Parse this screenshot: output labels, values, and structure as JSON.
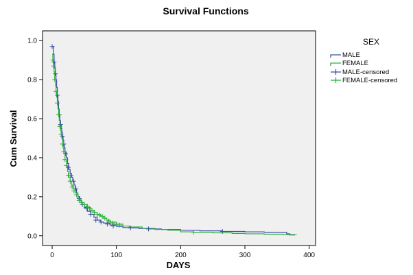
{
  "chart_data": {
    "type": "line",
    "subtype": "step",
    "title": "Survival Functions",
    "xlabel": "DAYS",
    "ylabel": "Cum Survival",
    "xlim": [
      -15,
      410
    ],
    "ylim": [
      -0.05,
      1.05
    ],
    "x_ticks": [
      0,
      100,
      200,
      300,
      400
    ],
    "y_ticks": [
      0.0,
      0.2,
      0.4,
      0.6,
      0.8,
      1.0
    ],
    "y_tick_labels": [
      "0.0",
      "0.2",
      "0.4",
      "0.6",
      "0.8",
      "1.0"
    ],
    "grid": false,
    "plot_background": "#f0f0f0",
    "legend": {
      "title": "SEX",
      "placement": "right",
      "entries": [
        "MALE",
        "FEMALE",
        "MALE-censored",
        "FEMALE-censored"
      ]
    },
    "series": [
      {
        "name": "MALE",
        "color": "#3c4ea6",
        "x": [
          0,
          2,
          3,
          4,
          5,
          6,
          7,
          8,
          9,
          10,
          11,
          12,
          13,
          14,
          15,
          16,
          17,
          18,
          19,
          20,
          22,
          24,
          26,
          28,
          30,
          32,
          34,
          36,
          38,
          40,
          43,
          46,
          50,
          55,
          60,
          65,
          70,
          75,
          80,
          90,
          100,
          110,
          120,
          135,
          150,
          170,
          200,
          230,
          265,
          300,
          330,
          365,
          370,
          378
        ],
        "y": [
          0.97,
          0.93,
          0.89,
          0.86,
          0.83,
          0.8,
          0.76,
          0.72,
          0.69,
          0.65,
          0.62,
          0.59,
          0.57,
          0.55,
          0.53,
          0.51,
          0.49,
          0.47,
          0.45,
          0.43,
          0.4,
          0.37,
          0.34,
          0.32,
          0.3,
          0.28,
          0.26,
          0.24,
          0.22,
          0.2,
          0.18,
          0.16,
          0.145,
          0.125,
          0.11,
          0.095,
          0.08,
          0.07,
          0.065,
          0.055,
          0.048,
          0.042,
          0.04,
          0.037,
          0.035,
          0.032,
          0.028,
          0.025,
          0.022,
          0.02,
          0.018,
          0.01,
          0.004,
          0.004
        ]
      },
      {
        "name": "FEMALE",
        "color": "#2ab03c",
        "x": [
          0,
          1,
          2,
          3,
          4,
          5,
          6,
          7,
          8,
          9,
          10,
          11,
          12,
          13,
          14,
          15,
          16,
          17,
          18,
          20,
          22,
          24,
          26,
          28,
          30,
          33,
          36,
          40,
          45,
          50,
          55,
          60,
          65,
          70,
          75,
          80,
          85,
          90,
          100,
          110,
          120,
          140,
          160,
          180,
          200,
          220,
          250,
          280,
          300,
          330,
          360,
          380
        ],
        "y": [
          0.93,
          0.9,
          0.87,
          0.84,
          0.8,
          0.77,
          0.74,
          0.71,
          0.68,
          0.65,
          0.62,
          0.59,
          0.56,
          0.54,
          0.52,
          0.5,
          0.47,
          0.45,
          0.43,
          0.39,
          0.36,
          0.33,
          0.3,
          0.28,
          0.26,
          0.24,
          0.22,
          0.19,
          0.17,
          0.16,
          0.145,
          0.13,
          0.12,
          0.11,
          0.1,
          0.09,
          0.08,
          0.07,
          0.06,
          0.05,
          0.045,
          0.038,
          0.032,
          0.028,
          0.02,
          0.018,
          0.015,
          0.012,
          0.01,
          0.008,
          0.006,
          0.004
        ]
      }
    ],
    "censored": [
      {
        "name": "MALE-censored",
        "color": "#3c4ea6",
        "x": [
          0,
          3,
          5,
          8,
          11,
          13,
          16,
          18,
          21,
          25,
          29,
          33,
          37,
          42,
          47,
          53,
          60,
          68,
          76,
          86,
          95,
          122,
          150,
          265
        ],
        "y": [
          0.97,
          0.89,
          0.83,
          0.72,
          0.62,
          0.57,
          0.51,
          0.47,
          0.42,
          0.35,
          0.31,
          0.28,
          0.24,
          0.19,
          0.16,
          0.14,
          0.11,
          0.08,
          0.07,
          0.06,
          0.05,
          0.04,
          0.035,
          0.022
        ]
      },
      {
        "name": "FEMALE-censored",
        "color": "#2ab03c",
        "x": [
          1,
          2,
          4,
          6,
          8,
          10,
          12,
          14,
          16,
          18,
          20,
          22,
          25,
          28,
          31,
          34,
          38,
          42,
          46,
          50,
          54,
          58,
          62,
          66,
          70,
          74,
          78,
          82,
          88,
          94,
          100,
          105,
          220
        ],
        "y": [
          0.9,
          0.87,
          0.8,
          0.74,
          0.68,
          0.62,
          0.56,
          0.52,
          0.47,
          0.43,
          0.39,
          0.36,
          0.31,
          0.28,
          0.25,
          0.23,
          0.21,
          0.18,
          0.17,
          0.16,
          0.15,
          0.14,
          0.13,
          0.12,
          0.11,
          0.105,
          0.1,
          0.09,
          0.075,
          0.065,
          0.06,
          0.055,
          0.018
        ]
      }
    ]
  }
}
